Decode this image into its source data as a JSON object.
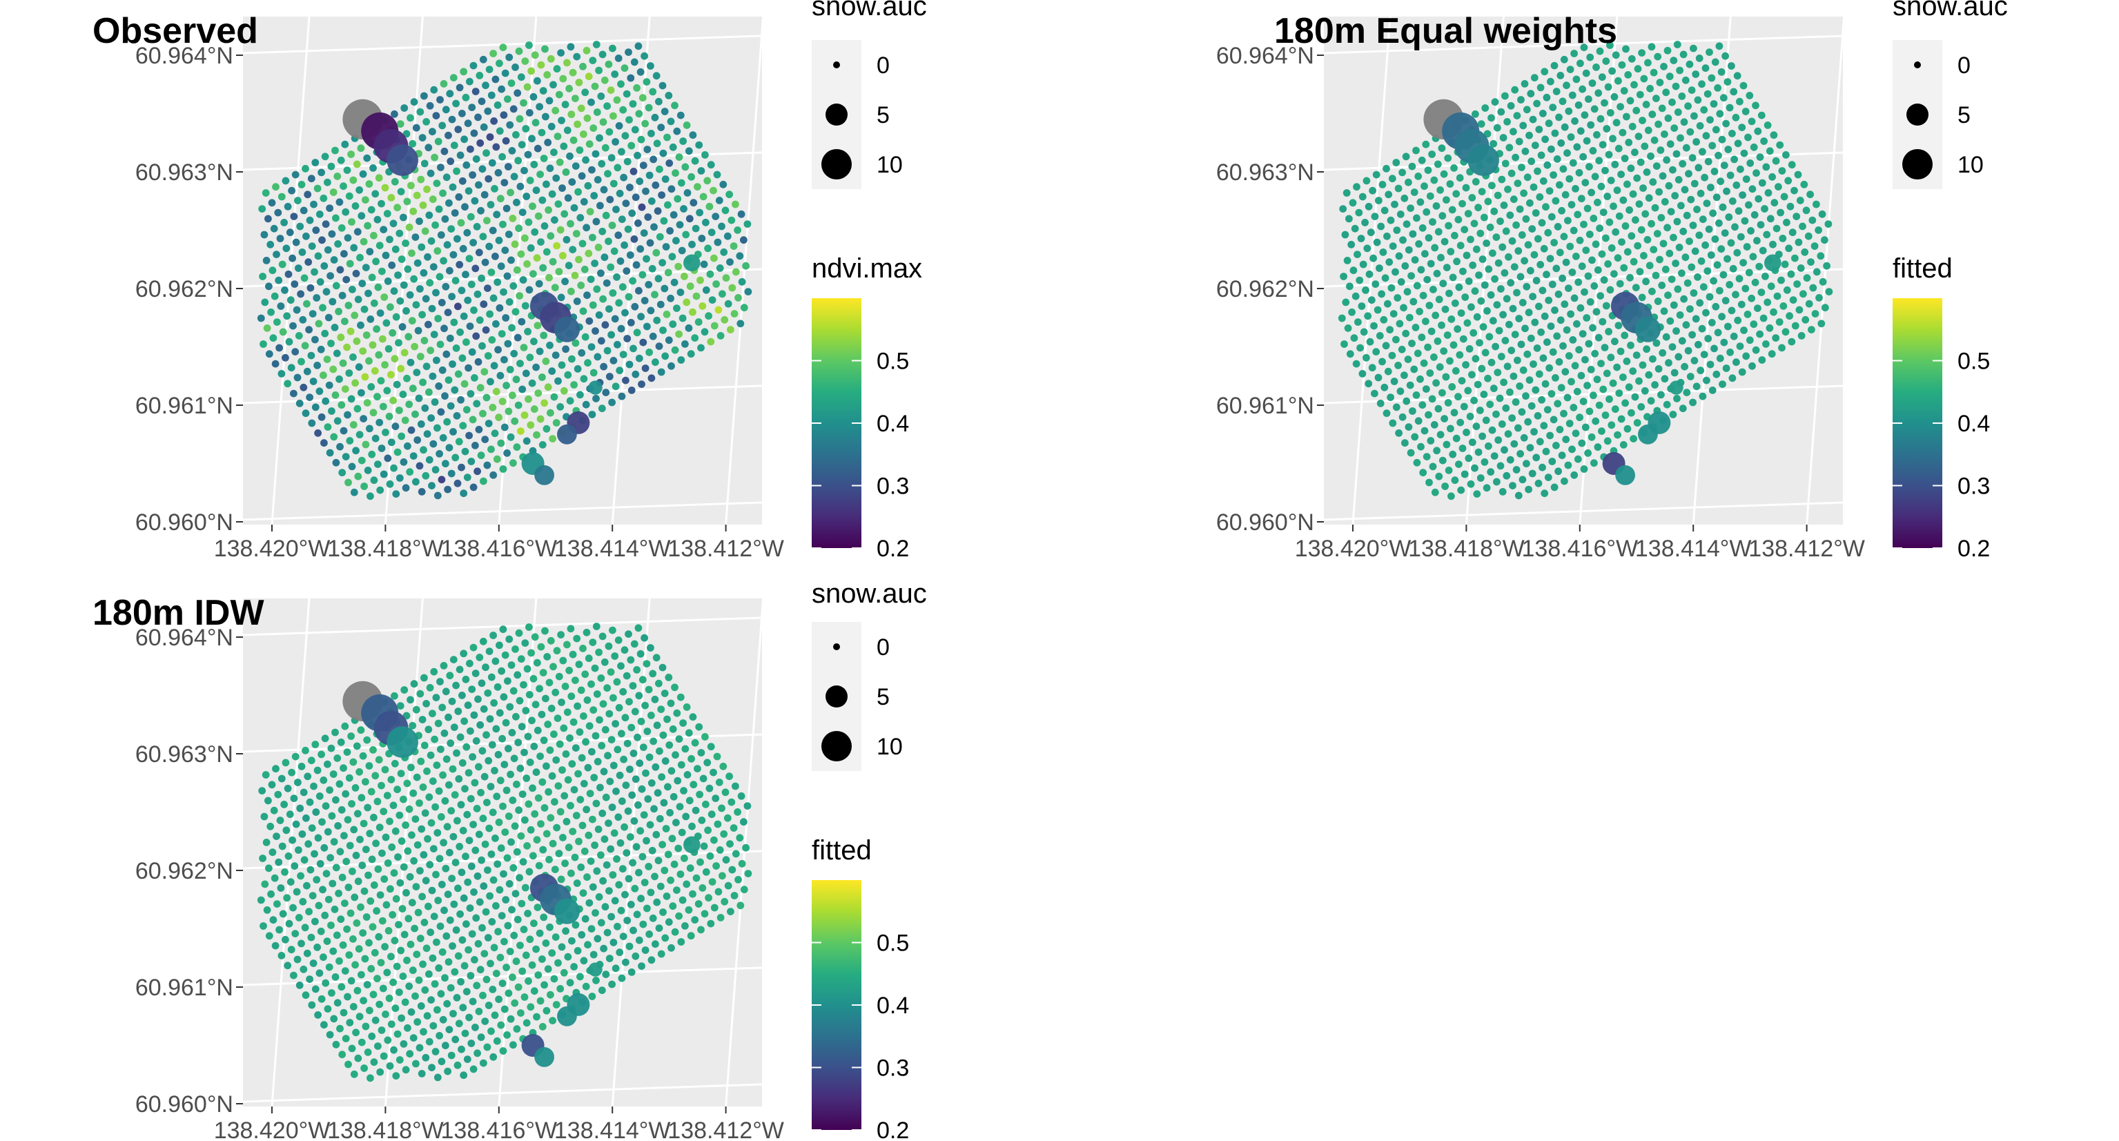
{
  "chart_data": [
    {
      "type": "scatter",
      "title": "Observed",
      "xlabel": "",
      "ylabel": "",
      "x_ticks": [
        "138.420°W",
        "138.418°W",
        "138.416°W",
        "138.414°W",
        "138.412°W"
      ],
      "y_ticks": [
        "60.964°N",
        "60.963°N",
        "60.962°N",
        "60.961°N",
        "60.960°N"
      ],
      "xlim": [
        -138.4205,
        -138.4115
      ],
      "ylim": [
        60.9598,
        60.9643
      ],
      "grid": true,
      "color_var": "ndvi.max",
      "size_var": "snow.auc",
      "grid_color_range": [
        0.28,
        0.56
      ],
      "sites": [
        {
          "lon": -138.4184,
          "lat": 60.96345,
          "size": 11,
          "value": null
        },
        {
          "lon": -138.4181,
          "lat": 60.96335,
          "size": 10,
          "value": 0.22
        },
        {
          "lon": -138.4179,
          "lat": 60.96322,
          "size": 9,
          "value": 0.25
        },
        {
          "lon": -138.4177,
          "lat": 60.9631,
          "size": 8,
          "value": 0.3
        },
        {
          "lon": -138.4152,
          "lat": 60.96185,
          "size": 7,
          "value": 0.3
        },
        {
          "lon": -138.415,
          "lat": 60.96175,
          "size": 8,
          "value": 0.28
        },
        {
          "lon": -138.4148,
          "lat": 60.96165,
          "size": 6,
          "value": 0.33
        },
        {
          "lon": -138.4126,
          "lat": 60.96222,
          "size": 3,
          "value": 0.42
        },
        {
          "lon": -138.4143,
          "lat": 60.96115,
          "size": 2,
          "value": 0.4
        },
        {
          "lon": -138.4146,
          "lat": 60.96085,
          "size": 5,
          "value": 0.28
        },
        {
          "lon": -138.4148,
          "lat": 60.96075,
          "size": 4,
          "value": 0.32
        },
        {
          "lon": -138.4154,
          "lat": 60.9605,
          "size": 5,
          "value": 0.4
        },
        {
          "lon": -138.4152,
          "lat": 60.9604,
          "size": 4,
          "value": 0.36
        }
      ],
      "legend_size": {
        "title": "snow.auc",
        "labels": [
          "0",
          "5",
          "10"
        ]
      },
      "legend_color": {
        "title": "ndvi.max",
        "labels": [
          "0.5",
          "0.4",
          "0.3",
          "0.2"
        ],
        "range": [
          0.2,
          0.6
        ]
      }
    },
    {
      "type": "scatter",
      "title": "180m Equal weights",
      "xlabel": "",
      "ylabel": "",
      "x_ticks": [
        "138.420°W",
        "138.418°W",
        "138.416°W",
        "138.414°W",
        "138.412°W"
      ],
      "y_ticks": [
        "60.964°N",
        "60.963°N",
        "60.962°N",
        "60.961°N",
        "60.960°N"
      ],
      "xlim": [
        -138.4205,
        -138.4115
      ],
      "ylim": [
        60.9598,
        60.9643
      ],
      "grid": true,
      "color_var": "fitted",
      "size_var": "snow.auc",
      "grid_color_range": [
        0.42,
        0.45
      ],
      "sites": [
        {
          "lon": -138.4184,
          "lat": 60.96345,
          "size": 11,
          "value": null
        },
        {
          "lon": -138.4181,
          "lat": 60.96335,
          "size": 10,
          "value": 0.34
        },
        {
          "lon": -138.4179,
          "lat": 60.96322,
          "size": 9,
          "value": 0.36
        },
        {
          "lon": -138.4177,
          "lat": 60.9631,
          "size": 8,
          "value": 0.38
        },
        {
          "lon": -138.4152,
          "lat": 60.96185,
          "size": 7,
          "value": 0.3
        },
        {
          "lon": -138.415,
          "lat": 60.96175,
          "size": 8,
          "value": 0.34
        },
        {
          "lon": -138.4148,
          "lat": 60.96165,
          "size": 6,
          "value": 0.38
        },
        {
          "lon": -138.4126,
          "lat": 60.96222,
          "size": 3,
          "value": 0.42
        },
        {
          "lon": -138.4143,
          "lat": 60.96115,
          "size": 2,
          "value": 0.42
        },
        {
          "lon": -138.4146,
          "lat": 60.96085,
          "size": 5,
          "value": 0.4
        },
        {
          "lon": -138.4148,
          "lat": 60.96075,
          "size": 4,
          "value": 0.4
        },
        {
          "lon": -138.4154,
          "lat": 60.9605,
          "size": 5,
          "value": 0.28
        },
        {
          "lon": -138.4152,
          "lat": 60.9604,
          "size": 4,
          "value": 0.4
        }
      ],
      "legend_size": {
        "title": "snow.auc",
        "labels": [
          "0",
          "5",
          "10"
        ]
      },
      "legend_color": {
        "title": "fitted",
        "labels": [
          "0.5",
          "0.4",
          "0.3",
          "0.2"
        ],
        "range": [
          0.2,
          0.6
        ]
      }
    },
    {
      "type": "scatter",
      "title": "180m IDW",
      "xlabel": "",
      "ylabel": "",
      "x_ticks": [
        "138.420°W",
        "138.418°W",
        "138.416°W",
        "138.414°W",
        "138.412°W"
      ],
      "y_ticks": [
        "60.964°N",
        "60.963°N",
        "60.962°N",
        "60.961°N",
        "60.960°N"
      ],
      "xlim": [
        -138.4205,
        -138.4115
      ],
      "ylim": [
        60.9598,
        60.9643
      ],
      "grid": true,
      "color_var": "fitted",
      "size_var": "snow.auc",
      "grid_color_range": [
        0.41,
        0.47
      ],
      "sites": [
        {
          "lon": -138.4184,
          "lat": 60.96345,
          "size": 11,
          "value": null
        },
        {
          "lon": -138.4181,
          "lat": 60.96335,
          "size": 10,
          "value": 0.32
        },
        {
          "lon": -138.4179,
          "lat": 60.96322,
          "size": 9,
          "value": 0.3
        },
        {
          "lon": -138.4177,
          "lat": 60.9631,
          "size": 8,
          "value": 0.4
        },
        {
          "lon": -138.4152,
          "lat": 60.96185,
          "size": 7,
          "value": 0.3
        },
        {
          "lon": -138.415,
          "lat": 60.96175,
          "size": 8,
          "value": 0.34
        },
        {
          "lon": -138.4148,
          "lat": 60.96165,
          "size": 6,
          "value": 0.4
        },
        {
          "lon": -138.4126,
          "lat": 60.96222,
          "size": 3,
          "value": 0.42
        },
        {
          "lon": -138.4143,
          "lat": 60.96115,
          "size": 2,
          "value": 0.42
        },
        {
          "lon": -138.4146,
          "lat": 60.96085,
          "size": 5,
          "value": 0.4
        },
        {
          "lon": -138.4148,
          "lat": 60.96075,
          "size": 4,
          "value": 0.4
        },
        {
          "lon": -138.4154,
          "lat": 60.9605,
          "size": 5,
          "value": 0.3
        },
        {
          "lon": -138.4152,
          "lat": 60.9604,
          "size": 4,
          "value": 0.4
        }
      ],
      "legend_size": {
        "title": "snow.auc",
        "labels": [
          "0",
          "5",
          "10"
        ]
      },
      "legend_color": {
        "title": "fitted",
        "labels": [
          "0.5",
          "0.4",
          "0.3",
          "0.2"
        ],
        "range": [
          0.2,
          0.6
        ]
      }
    }
  ],
  "colors": {
    "panel_bg": "#ebebeb",
    "grid_line": "#ffffff",
    "legend_key_bg": "#f2f2f2",
    "na_point": "#808080",
    "viridis": [
      "#440154",
      "#472c7a",
      "#3b518b",
      "#2c718e",
      "#21908d",
      "#27ad81",
      "#5cc863",
      "#aadc32",
      "#fde725"
    ]
  }
}
